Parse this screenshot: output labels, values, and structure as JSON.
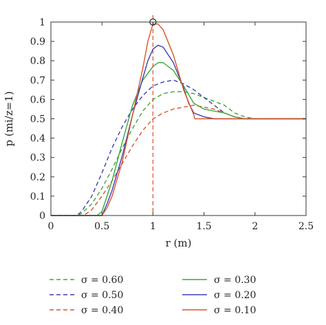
{
  "chart_data": {
    "type": "line",
    "xlabel": "r (m)",
    "ylabel": "p (mi/z=1)",
    "xlim": [
      0,
      2.5
    ],
    "ylim": [
      0,
      1
    ],
    "xticks": [
      "0",
      "0.5",
      "1",
      "1.5",
      "2",
      "2.5"
    ],
    "yticks": [
      "0",
      "0.1",
      "0.2",
      "0.3",
      "0.4",
      "0.5",
      "0.6",
      "0.7",
      "0.8",
      "0.9",
      "1"
    ],
    "grid": false,
    "legend_position": "bottom",
    "reference_line": {
      "x": 1,
      "color": "#d9532a",
      "style": "dashed"
    },
    "peak_marker": {
      "x": 1,
      "y": 1
    },
    "series": [
      {
        "name": "σ = 0.60",
        "color": "#3aa83a",
        "style": "dashed",
        "x": [
          0,
          0.25,
          0.3,
          0.4,
          0.5,
          0.6,
          0.7,
          0.8,
          0.9,
          1.0,
          1.1,
          1.2,
          1.3,
          1.4,
          1.5,
          1.6,
          1.7,
          1.8,
          1.9,
          2.0,
          2.5
        ],
        "y": [
          0,
          0,
          0.01,
          0.06,
          0.14,
          0.24,
          0.35,
          0.45,
          0.54,
          0.6,
          0.63,
          0.64,
          0.64,
          0.63,
          0.61,
          0.59,
          0.57,
          0.53,
          0.51,
          0.5,
          0.5
        ]
      },
      {
        "name": "σ = 0.50",
        "color": "#3b3fb0",
        "style": "dashed",
        "x": [
          0,
          0.25,
          0.3,
          0.4,
          0.5,
          0.6,
          0.7,
          0.8,
          0.9,
          1.0,
          1.1,
          1.2,
          1.3,
          1.4,
          1.5,
          1.6,
          1.7,
          1.8,
          1.9,
          2.0,
          2.5
        ],
        "y": [
          0,
          0,
          0.02,
          0.1,
          0.22,
          0.35,
          0.46,
          0.55,
          0.62,
          0.67,
          0.69,
          0.7,
          0.68,
          0.65,
          0.61,
          0.57,
          0.53,
          0.51,
          0.5,
          0.5,
          0.5
        ]
      },
      {
        "name": "σ = 0.40",
        "color": "#d9532a",
        "style": "dashed",
        "x": [
          0,
          0.3,
          0.35,
          0.4,
          0.5,
          0.6,
          0.7,
          0.8,
          0.9,
          1.0,
          1.1,
          1.2,
          1.3,
          1.4,
          1.5,
          1.6,
          1.7,
          1.8,
          1.9,
          2.0,
          2.5
        ],
        "y": [
          0,
          0,
          0.01,
          0.03,
          0.1,
          0.18,
          0.27,
          0.36,
          0.44,
          0.5,
          0.53,
          0.55,
          0.56,
          0.57,
          0.56,
          0.55,
          0.53,
          0.51,
          0.5,
          0.5,
          0.5
        ]
      },
      {
        "name": "σ = 0.30",
        "color": "#3aa83a",
        "style": "solid",
        "x": [
          0,
          0.45,
          0.5,
          0.6,
          0.7,
          0.8,
          0.9,
          1.0,
          1.05,
          1.1,
          1.2,
          1.3,
          1.4,
          1.5,
          1.6,
          1.7,
          1.8,
          1.9,
          2.0,
          2.5
        ],
        "y": [
          0,
          0,
          0.02,
          0.18,
          0.38,
          0.57,
          0.7,
          0.77,
          0.79,
          0.79,
          0.75,
          0.67,
          0.58,
          0.55,
          0.54,
          0.53,
          0.51,
          0.5,
          0.5,
          0.5
        ]
      },
      {
        "name": "σ = 0.20",
        "color": "#3b3fb0",
        "style": "solid",
        "x": [
          0,
          0.5,
          0.55,
          0.6,
          0.7,
          0.8,
          0.9,
          0.95,
          1.0,
          1.05,
          1.1,
          1.2,
          1.3,
          1.35,
          1.4,
          1.5,
          1.6,
          1.7,
          2.0,
          2.5
        ],
        "y": [
          0,
          0,
          0.06,
          0.13,
          0.31,
          0.52,
          0.71,
          0.8,
          0.86,
          0.88,
          0.87,
          0.79,
          0.66,
          0.58,
          0.53,
          0.51,
          0.5,
          0.5,
          0.5,
          0.5
        ]
      },
      {
        "name": "σ = 0.10",
        "color": "#d9532a",
        "style": "solid",
        "x": [
          0,
          0.5,
          0.55,
          0.6,
          0.7,
          0.8,
          0.9,
          0.95,
          1.0,
          1.05,
          1.1,
          1.2,
          1.3,
          1.4,
          1.41,
          2.0,
          2.5
        ],
        "y": [
          0,
          0,
          0.04,
          0.1,
          0.28,
          0.52,
          0.76,
          0.9,
          0.99,
          0.99,
          0.96,
          0.83,
          0.65,
          0.52,
          0.5,
          0.5,
          0.5
        ]
      }
    ]
  }
}
